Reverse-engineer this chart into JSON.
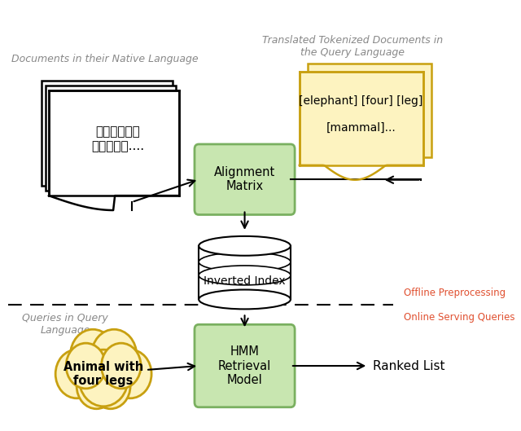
{
  "bg_color": "#ffffff",
  "offline_text": "Offline Preprocessing",
  "online_text": "Online Serving Queries",
  "label_native": "Documents in their Native Language",
  "label_translated": "Translated Tokenized Documents in\nthe Query Language",
  "label_queries": "Queries in Query\nLanguage",
  "alignment_label": "Alignment\nMatrix",
  "alignment_color": "#c8e6b0",
  "alignment_ec": "#7ab060",
  "hmm_label": "HMM\nRetrieval\nModel",
  "hmm_color": "#c8e6b0",
  "hmm_ec": "#7ab060",
  "doc_text": "大象是四隻腳\n的哺乳動物....",
  "translated_text": "[elephant] [four] [leg]\n\n[mammal]...",
  "query_text": "Animal with\nfour legs",
  "ranked_list_text": "Ranked List",
  "red_color": "#e05030",
  "gray_color": "#888888",
  "inverted_index_label": "Inverted Index"
}
